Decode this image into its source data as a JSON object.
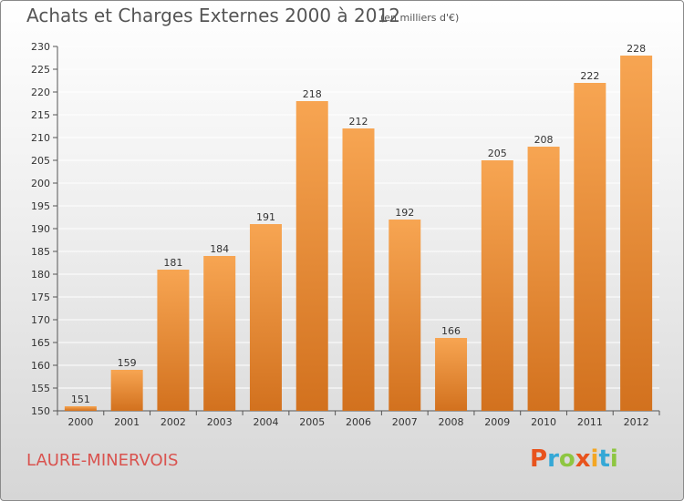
{
  "header": {
    "title": "Achats et Charges Externes 2000 à 2012",
    "subtitle": "(en milliers d'€)"
  },
  "footer": {
    "commune": "LAURE-MINERVOIS",
    "logo_text": "Proxiti"
  },
  "colors": {
    "bar_top": "#f7a552",
    "bar_bottom": "#d2711e",
    "grid": "#ffffff",
    "title": "#555555",
    "commune": "#d9534f",
    "logo_letters": [
      "#e8531d",
      "#35a8d6",
      "#8ec641",
      "#e8531d",
      "#f3a623",
      "#35a8d6",
      "#8ec641"
    ]
  },
  "chart_data": {
    "type": "bar",
    "title": "Achats et Charges Externes 2000 à 2012",
    "subtitle": "(en milliers d'€)",
    "categories": [
      "2000",
      "2001",
      "2002",
      "2003",
      "2004",
      "2005",
      "2006",
      "2007",
      "2008",
      "2009",
      "2010",
      "2011",
      "2012"
    ],
    "values": [
      151,
      159,
      181,
      184,
      191,
      218,
      212,
      192,
      166,
      205,
      208,
      222,
      228
    ],
    "ylim": [
      150,
      230
    ],
    "yticks": [
      150,
      155,
      160,
      165,
      170,
      175,
      180,
      185,
      190,
      195,
      200,
      205,
      210,
      215,
      220,
      225,
      230
    ],
    "grid": true,
    "data_labels": true
  }
}
